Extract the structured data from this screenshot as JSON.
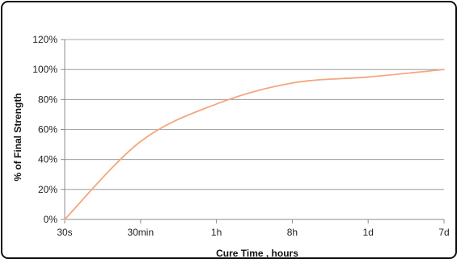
{
  "chart_data": {
    "type": "line",
    "title": "",
    "xlabel": "Cure Time , hours",
    "ylabel": "% of Final Strength",
    "categories": [
      "30s",
      "30min",
      "1h",
      "8h",
      "1d",
      "7d"
    ],
    "ylim": [
      0,
      120
    ],
    "y_ticks": [
      "0%",
      "20%",
      "40%",
      "60%",
      "80%",
      "100%",
      "120%"
    ],
    "grid": true,
    "legend": "none",
    "series": [
      {
        "points": [
          {
            "x": "30s",
            "y": 0
          },
          {
            "x": "30min",
            "y": 52
          },
          {
            "x": "1h",
            "y": 77
          },
          {
            "x": "8h",
            "y": 91
          },
          {
            "x": "1d",
            "y": 95
          },
          {
            "x": "7d",
            "y": 100
          }
        ]
      }
    ],
    "colors": {
      "line": "#f5a67e",
      "grid": "#8c8c8c",
      "axis": "#8c8c8c"
    }
  }
}
